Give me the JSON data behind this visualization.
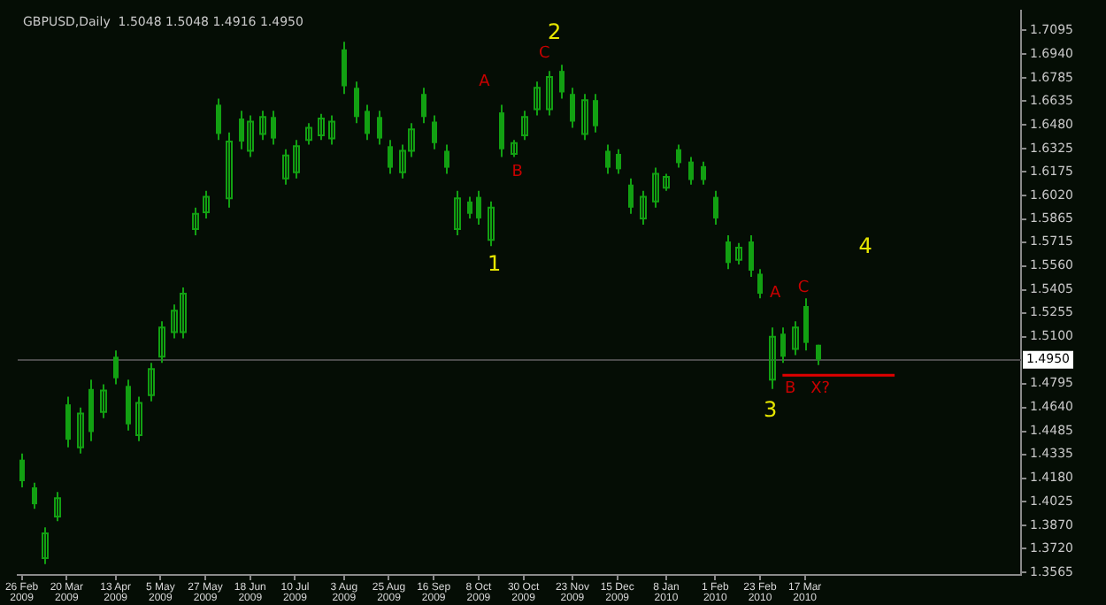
{
  "chart_data": {
    "type": "candlestick",
    "title": "GBPUSD,Daily  1.5048 1.5048 1.4916 1.4950",
    "color": "#12a012",
    "x": [
      "2009-02-26",
      "2009-03-04",
      "2009-03-09",
      "2009-03-15",
      "2009-03-20",
      "2009-03-26",
      "2009-04-01",
      "2009-04-07",
      "2009-04-13",
      "2009-04-19",
      "2009-04-24",
      "2009-04-30",
      "2009-05-05",
      "2009-05-11",
      "2009-05-16",
      "2009-05-22",
      "2009-05-27",
      "2009-06-02",
      "2009-06-07",
      "2009-06-13",
      "2009-06-18",
      "2009-06-24",
      "2009-06-29",
      "2009-07-05",
      "2009-07-10",
      "2009-07-16",
      "2009-07-22",
      "2009-07-28",
      "2009-08-03",
      "2009-08-09",
      "2009-08-14",
      "2009-08-20",
      "2009-08-25",
      "2009-08-31",
      "2009-09-05",
      "2009-09-11",
      "2009-09-16",
      "2009-09-22",
      "2009-09-27",
      "2009-10-03",
      "2009-10-08",
      "2009-10-14",
      "2009-10-19",
      "2009-10-25",
      "2009-10-30",
      "2009-11-05",
      "2009-11-11",
      "2009-11-17",
      "2009-11-23",
      "2009-11-29",
      "2009-12-04",
      "2009-12-10",
      "2009-12-15",
      "2009-12-21",
      "2009-12-27",
      "2010-01-02",
      "2010-01-08",
      "2010-01-14",
      "2010-01-20",
      "2010-01-26",
      "2010-02-01",
      "2010-02-07",
      "2010-02-12",
      "2010-02-18",
      "2010-02-23",
      "2010-03-01",
      "2010-03-06",
      "2010-03-12",
      "2010-03-17",
      "2010-03-23"
    ],
    "ohlc": [
      [
        1.43,
        1.434,
        1.412,
        1.416
      ],
      [
        1.412,
        1.415,
        1.398,
        1.401
      ],
      [
        1.366,
        1.386,
        1.362,
        1.382
      ],
      [
        1.393,
        1.409,
        1.39,
        1.405
      ],
      [
        1.466,
        1.471,
        1.438,
        1.443
      ],
      [
        1.438,
        1.464,
        1.434,
        1.46
      ],
      [
        1.476,
        1.482,
        1.442,
        1.448
      ],
      [
        1.461,
        1.479,
        1.457,
        1.475
      ],
      [
        1.497,
        1.501,
        1.479,
        1.483
      ],
      [
        1.478,
        1.482,
        1.449,
        1.453
      ],
      [
        1.446,
        1.471,
        1.442,
        1.467
      ],
      [
        1.472,
        1.493,
        1.468,
        1.489
      ],
      [
        1.497,
        1.52,
        1.493,
        1.516
      ],
      [
        1.513,
        1.531,
        1.509,
        1.527
      ],
      [
        1.513,
        1.542,
        1.509,
        1.538
      ],
      [
        1.58,
        1.594,
        1.576,
        1.59
      ],
      [
        1.591,
        1.605,
        1.587,
        1.601
      ],
      [
        1.661,
        1.665,
        1.638,
        1.642
      ],
      [
        1.6,
        1.643,
        1.594,
        1.637
      ],
      [
        1.652,
        1.657,
        1.632,
        1.637
      ],
      [
        1.631,
        1.654,
        1.627,
        1.65
      ],
      [
        1.642,
        1.657,
        1.638,
        1.653
      ],
      [
        1.653,
        1.657,
        1.635,
        1.639
      ],
      [
        1.613,
        1.632,
        1.609,
        1.628
      ],
      [
        1.617,
        1.638,
        1.613,
        1.634
      ],
      [
        1.638,
        1.649,
        1.635,
        1.646
      ],
      [
        1.641,
        1.655,
        1.638,
        1.652
      ],
      [
        1.639,
        1.654,
        1.635,
        1.65
      ],
      [
        1.697,
        1.702,
        1.668,
        1.673
      ],
      [
        1.672,
        1.676,
        1.649,
        1.653
      ],
      [
        1.657,
        1.661,
        1.638,
        1.642
      ],
      [
        1.653,
        1.657,
        1.635,
        1.639
      ],
      [
        1.634,
        1.638,
        1.616,
        1.62
      ],
      [
        1.617,
        1.635,
        1.613,
        1.631
      ],
      [
        1.631,
        1.649,
        1.627,
        1.645
      ],
      [
        1.668,
        1.672,
        1.649,
        1.653
      ],
      [
        1.65,
        1.654,
        1.632,
        1.636
      ],
      [
        1.631,
        1.635,
        1.616,
        1.62
      ],
      [
        1.58,
        1.605,
        1.576,
        1.6
      ],
      [
        1.598,
        1.601,
        1.587,
        1.59
      ],
      [
        1.601,
        1.605,
        1.583,
        1.587
      ],
      [
        1.573,
        1.598,
        1.569,
        1.594
      ],
      [
        1.656,
        1.661,
        1.627,
        1.632
      ],
      [
        1.629,
        1.638,
        1.627,
        1.636
      ],
      [
        1.641,
        1.657,
        1.638,
        1.653
      ],
      [
        1.658,
        1.676,
        1.654,
        1.672
      ],
      [
        1.658,
        1.683,
        1.654,
        1.679
      ],
      [
        1.683,
        1.687,
        1.665,
        1.669
      ],
      [
        1.668,
        1.672,
        1.646,
        1.65
      ],
      [
        1.642,
        1.668,
        1.638,
        1.664
      ],
      [
        1.664,
        1.668,
        1.643,
        1.647
      ],
      [
        1.631,
        1.635,
        1.616,
        1.62
      ],
      [
        1.629,
        1.632,
        1.616,
        1.619
      ],
      [
        1.609,
        1.613,
        1.59,
        1.594
      ],
      [
        1.587,
        1.605,
        1.583,
        1.601
      ],
      [
        1.598,
        1.62,
        1.594,
        1.616
      ],
      [
        1.607,
        1.616,
        1.605,
        1.614
      ],
      [
        1.632,
        1.635,
        1.62,
        1.623
      ],
      [
        1.624,
        1.627,
        1.609,
        1.612
      ],
      [
        1.621,
        1.624,
        1.609,
        1.612
      ],
      [
        1.601,
        1.605,
        1.583,
        1.587
      ],
      [
        1.572,
        1.576,
        1.554,
        1.558
      ],
      [
        1.56,
        1.571,
        1.557,
        1.568
      ],
      [
        1.572,
        1.576,
        1.549,
        1.553
      ],
      [
        1.551,
        1.554,
        1.535,
        1.538
      ],
      [
        1.482,
        1.516,
        1.476,
        1.51
      ],
      [
        1.512,
        1.516,
        1.493,
        1.497
      ],
      [
        1.502,
        1.52,
        1.498,
        1.516
      ],
      [
        1.53,
        1.535,
        1.501,
        1.506
      ],
      [
        1.5048,
        1.5048,
        1.4916,
        1.495
      ]
    ],
    "series": [
      {
        "type": "line",
        "x": [
          "2010-03-06",
          "2010-04-30"
        ],
        "values": [
          1.485,
          1.485
        ],
        "color": "#e00000"
      }
    ],
    "xlim": [
      "2009-02-24",
      "2010-07-01"
    ],
    "xticks": [
      {
        "value": "2009-02-26",
        "label": "26 Feb 2009"
      },
      {
        "value": "2009-03-20",
        "label": "20 Mar 2009"
      },
      {
        "value": "2009-04-13",
        "label": "13 Apr 2009"
      },
      {
        "value": "2009-05-05",
        "label": "5 May 2009"
      },
      {
        "value": "2009-05-27",
        "label": "27 May 2009"
      },
      {
        "value": "2009-06-18",
        "label": "18 Jun 2009"
      },
      {
        "value": "2009-07-10",
        "label": "10 Jul 2009"
      },
      {
        "value": "2009-08-03",
        "label": "3 Aug 2009"
      },
      {
        "value": "2009-08-25",
        "label": "25 Aug 2009"
      },
      {
        "value": "2009-09-16",
        "label": "16 Sep 2009"
      },
      {
        "value": "2009-10-08",
        "label": "8 Oct 2009"
      },
      {
        "value": "2009-10-30",
        "label": "30 Oct 2009"
      },
      {
        "value": "2009-11-23",
        "label": "23 Nov 2009"
      },
      {
        "value": "2009-12-15",
        "label": "15 Dec 2009"
      },
      {
        "value": "2010-01-08",
        "label": "8 Jan 2010"
      },
      {
        "value": "2010-02-01",
        "label": "1 Feb 2010"
      },
      {
        "value": "2010-02-23",
        "label": "23 Feb 2010"
      },
      {
        "value": "2010-03-17",
        "label": "17 Mar 2010"
      }
    ],
    "ylim": [
      1.355,
      1.722
    ],
    "yticks": [
      {
        "value": 1.7095,
        "label": "1.7095"
      },
      {
        "value": 1.694,
        "label": "1.6940"
      },
      {
        "value": 1.6785,
        "label": "1.6785"
      },
      {
        "value": 1.6635,
        "label": "1.6635"
      },
      {
        "value": 1.648,
        "label": "1.6480"
      },
      {
        "value": 1.6325,
        "label": "1.6325"
      },
      {
        "value": 1.6175,
        "label": "1.6175"
      },
      {
        "value": 1.602,
        "label": "1.6020"
      },
      {
        "value": 1.5865,
        "label": "1.5865"
      },
      {
        "value": 1.5715,
        "label": "1.5715"
      },
      {
        "value": 1.556,
        "label": "1.5560"
      },
      {
        "value": 1.5405,
        "label": "1.5405"
      },
      {
        "value": 1.5255,
        "label": "1.5255"
      },
      {
        "value": 1.51,
        "label": "1.5100"
      },
      {
        "value": 1.4795,
        "label": "1.4795"
      },
      {
        "value": 1.464,
        "label": "1.4640"
      },
      {
        "value": 1.4485,
        "label": "1.4485"
      },
      {
        "value": 1.4335,
        "label": "1.4335"
      },
      {
        "value": 1.418,
        "label": "1.4180"
      },
      {
        "value": 1.4025,
        "label": "1.4025"
      },
      {
        "value": 1.387,
        "label": "1.3870"
      },
      {
        "value": 1.372,
        "label": "1.3720"
      },
      {
        "value": 1.3565,
        "label": "1.3565"
      }
    ],
    "ref_lines": [
      {
        "axis": "y",
        "value": 1.495,
        "label": "1.4950",
        "color": "#4a4a4a"
      }
    ],
    "annotations": [
      "1",
      "2",
      "3",
      "4",
      "A",
      "B",
      "C",
      "A",
      "C",
      "B",
      "X?"
    ],
    "grid": false,
    "legend": false
  }
}
